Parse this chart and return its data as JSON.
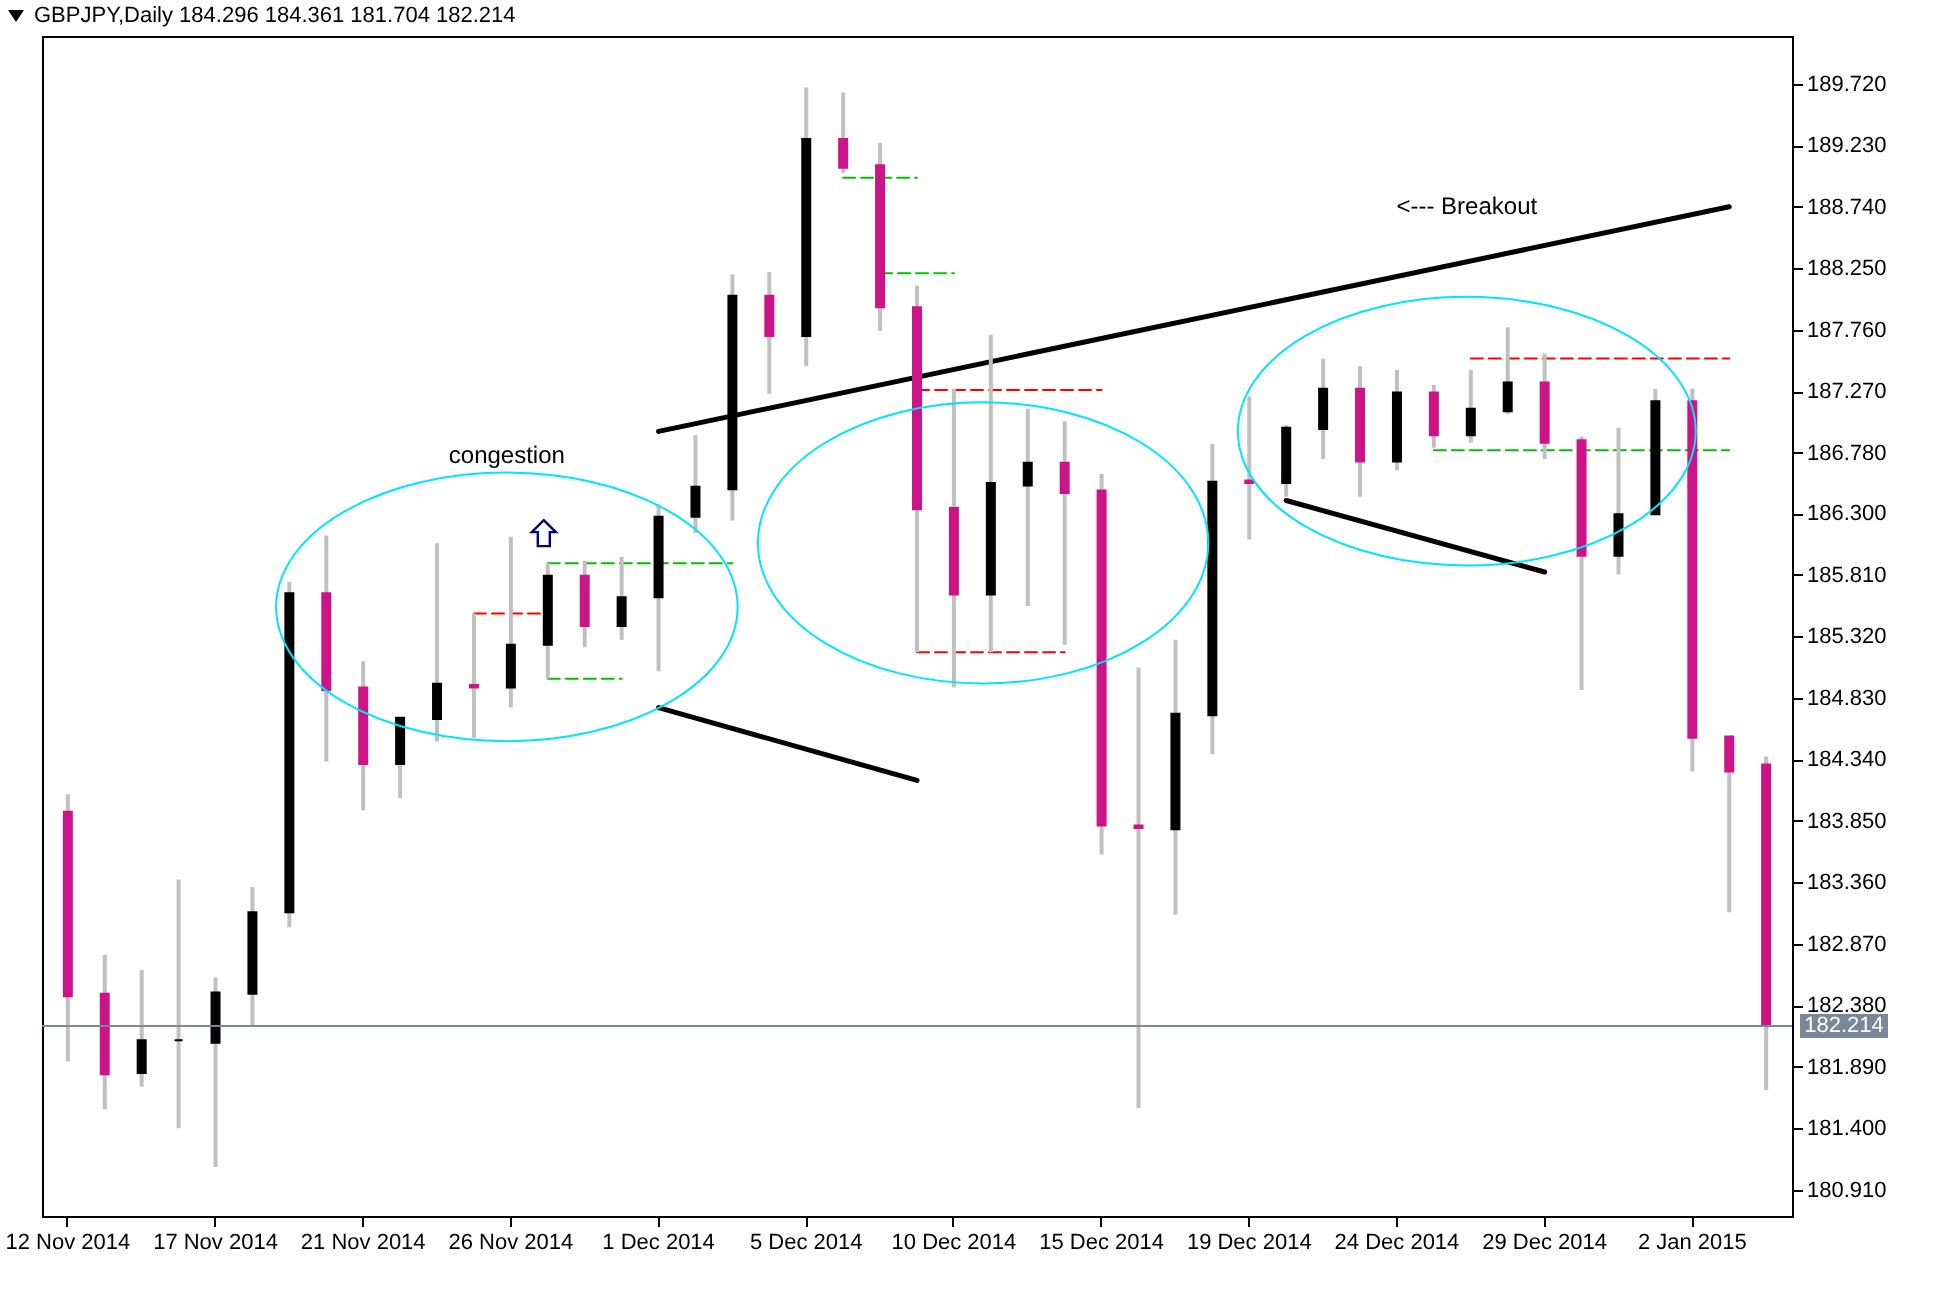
{
  "chart_data": {
    "type": "candlestick",
    "title": "GBPJPY,Daily  184.296 184.361 181.704 182.214",
    "categories": [
      "12 Nov 2014",
      null,
      null,
      null,
      "17 Nov 2014",
      null,
      null,
      null,
      "21 Nov 2014",
      null,
      null,
      null,
      "26 Nov 2014",
      null,
      null,
      null,
      "1 Dec 2014",
      null,
      null,
      null,
      "5 Dec 2014",
      null,
      null,
      null,
      "10 Dec 2014",
      null,
      null,
      null,
      "15 Dec 2014",
      null,
      null,
      null,
      "19 Dec 2014",
      null,
      null,
      null,
      "24 Dec 2014",
      null,
      null,
      null,
      "29 Dec 2014",
      null,
      null,
      null,
      "2 Jan 2015",
      null,
      null
    ],
    "ohlc": [
      [
        183.92,
        184.06,
        181.93,
        182.45
      ],
      [
        182.47,
        182.78,
        181.55,
        181.83
      ],
      [
        181.84,
        182.66,
        181.73,
        182.1
      ],
      [
        182.1,
        183.38,
        181.4,
        182.1
      ],
      [
        182.08,
        182.6,
        181.09,
        182.48
      ],
      [
        182.47,
        183.32,
        182.21,
        183.12
      ],
      [
        183.12,
        185.75,
        183.0,
        185.66
      ],
      [
        185.66,
        186.12,
        184.32,
        184.89
      ],
      [
        184.91,
        185.12,
        183.93,
        184.3
      ],
      [
        184.3,
        184.67,
        184.03,
        184.67
      ],
      [
        184.66,
        186.06,
        184.48,
        184.94
      ],
      [
        184.93,
        185.5,
        184.51,
        184.91
      ],
      [
        184.91,
        186.11,
        184.75,
        185.25
      ],
      [
        185.25,
        185.9,
        184.98,
        185.8
      ],
      [
        185.8,
        185.92,
        185.23,
        185.4
      ],
      [
        185.4,
        185.95,
        185.29,
        185.63
      ],
      [
        185.63,
        186.37,
        185.04,
        186.27
      ],
      [
        186.27,
        186.92,
        186.14,
        186.51
      ],
      [
        186.49,
        188.2,
        186.24,
        188.03
      ],
      [
        188.03,
        188.22,
        187.25,
        187.71
      ],
      [
        187.71,
        189.69,
        187.47,
        189.28
      ],
      [
        189.28,
        189.65,
        189.01,
        189.05
      ],
      [
        189.07,
        189.25,
        187.75,
        187.94
      ],
      [
        187.94,
        188.11,
        185.19,
        186.33
      ],
      [
        186.34,
        187.29,
        184.91,
        185.65
      ],
      [
        185.65,
        187.72,
        185.19,
        186.54
      ],
      [
        186.52,
        187.13,
        185.56,
        186.7
      ],
      [
        186.7,
        187.03,
        185.25,
        186.46
      ],
      [
        186.48,
        186.61,
        183.58,
        183.81
      ],
      [
        183.81,
        185.07,
        181.56,
        183.79
      ],
      [
        183.78,
        185.29,
        183.1,
        184.7
      ],
      [
        184.69,
        186.85,
        184.38,
        186.55
      ],
      [
        186.56,
        187.23,
        186.09,
        186.54
      ],
      [
        186.54,
        187.0,
        186.43,
        186.98
      ],
      [
        186.97,
        187.53,
        186.73,
        187.29
      ],
      [
        187.29,
        187.47,
        186.43,
        186.71
      ],
      [
        186.71,
        187.44,
        186.64,
        187.26
      ],
      [
        187.26,
        187.32,
        186.82,
        186.92
      ],
      [
        186.92,
        187.44,
        186.86,
        187.13
      ],
      [
        187.11,
        187.78,
        187.09,
        187.34
      ],
      [
        187.34,
        187.57,
        186.73,
        186.86
      ],
      [
        186.88,
        186.91,
        184.89,
        185.96
      ],
      [
        185.96,
        186.98,
        185.81,
        186.29
      ],
      [
        186.29,
        187.29,
        186.29,
        187.19
      ],
      [
        187.19,
        187.29,
        184.24,
        184.51
      ],
      [
        184.52,
        184.52,
        183.12,
        184.24
      ],
      [
        184.296,
        184.361,
        181.704,
        182.214
      ]
    ],
    "colors": [
      "#cc1488",
      "#cc1488",
      "#000000",
      "#000000",
      "#000000",
      "#000000",
      "#000000",
      "#cc1488",
      "#cc1488",
      "#000000",
      "#000000",
      "#cc1488",
      "#000000",
      "#000000",
      "#cc1488",
      "#000000",
      "#000000",
      "#000000",
      "#000000",
      "#cc1488",
      "#000000",
      "#cc1488",
      "#cc1488",
      "#cc1488",
      "#cc1488",
      "#000000",
      "#000000",
      "#cc1488",
      "#cc1488",
      "#cc1488",
      "#000000",
      "#000000",
      "#cc1488",
      "#000000",
      "#000000",
      "#cc1488",
      "#000000",
      "#cc1488",
      "#000000",
      "#000000",
      "#cc1488",
      "#cc1488",
      "#000000",
      "#000000",
      "#cc1488",
      "#cc1488",
      "#cc1488"
    ],
    "series": [
      {
        "type": "line",
        "color": "#000000",
        "line_style": "solid",
        "values": [
          null,
          null,
          null,
          null,
          null,
          null,
          null,
          null,
          null,
          null,
          null,
          null,
          null,
          null,
          null,
          null,
          186.95,
          null,
          null,
          null,
          null,
          null,
          null,
          null,
          null,
          null,
          null,
          null,
          null,
          null,
          null,
          null,
          null,
          null,
          null,
          null,
          null,
          null,
          null,
          null,
          null,
          null,
          null,
          null,
          null,
          188.74,
          null
        ]
      },
      {
        "type": "line",
        "color": "#000000",
        "line_style": "solid",
        "values": [
          null,
          null,
          null,
          null,
          null,
          null,
          null,
          null,
          null,
          null,
          null,
          null,
          null,
          null,
          null,
          null,
          184.75,
          null,
          null,
          null,
          null,
          null,
          null,
          184.17,
          null,
          null,
          null,
          null,
          null,
          null,
          null,
          null,
          null,
          null,
          null,
          null,
          null,
          null,
          null,
          null,
          null,
          null,
          null,
          null,
          null,
          null,
          null
        ]
      },
      {
        "type": "line",
        "color": "#000000",
        "line_style": "solid",
        "values": [
          null,
          null,
          null,
          null,
          null,
          null,
          null,
          null,
          null,
          null,
          null,
          null,
          null,
          null,
          null,
          null,
          null,
          null,
          null,
          null,
          null,
          null,
          null,
          null,
          null,
          null,
          null,
          null,
          null,
          null,
          null,
          null,
          null,
          186.4,
          null,
          null,
          null,
          null,
          null,
          null,
          185.83,
          null,
          null,
          null,
          null,
          null,
          null
        ]
      },
      {
        "type": "line",
        "color": "#ff0000",
        "line_style": "dashed",
        "values": [
          null,
          null,
          null,
          null,
          null,
          null,
          null,
          null,
          null,
          null,
          null,
          185.5,
          null,
          185.5,
          null,
          null,
          null,
          null,
          null,
          null,
          null,
          null,
          null,
          null,
          null,
          null,
          null,
          null,
          null,
          null,
          null,
          null,
          null,
          null,
          null,
          null,
          null,
          null,
          null,
          null,
          null,
          null,
          null,
          null,
          null,
          null,
          null
        ]
      },
      {
        "type": "line",
        "color": "#00c000",
        "line_style": "dashed",
        "values": [
          null,
          null,
          null,
          null,
          null,
          null,
          null,
          null,
          null,
          null,
          null,
          null,
          null,
          185.9,
          null,
          null,
          null,
          null,
          185.9,
          null,
          null,
          null,
          null,
          null,
          null,
          null,
          null,
          null,
          null,
          null,
          null,
          null,
          null,
          null,
          null,
          null,
          null,
          null,
          null,
          null,
          null,
          null,
          null,
          null,
          null,
          null,
          null
        ]
      },
      {
        "type": "line",
        "color": "#00c000",
        "line_style": "dashed",
        "values": [
          null,
          null,
          null,
          null,
          null,
          null,
          null,
          null,
          null,
          null,
          null,
          null,
          null,
          184.98,
          null,
          184.98,
          null,
          null,
          null,
          null,
          null,
          null,
          null,
          null,
          null,
          null,
          null,
          null,
          null,
          null,
          null,
          null,
          null,
          null,
          null,
          null,
          null,
          null,
          null,
          null,
          null,
          null,
          null,
          null,
          null,
          null,
          null
        ]
      },
      {
        "type": "line",
        "color": "#00c000",
        "line_style": "dashed",
        "values": [
          null,
          null,
          null,
          null,
          null,
          null,
          null,
          null,
          null,
          null,
          null,
          null,
          null,
          null,
          null,
          null,
          null,
          null,
          null,
          null,
          null,
          188.97,
          null,
          188.97,
          null,
          null,
          null,
          null,
          null,
          null,
          null,
          null,
          null,
          null,
          null,
          null,
          null,
          null,
          null,
          null,
          null,
          null,
          null,
          null,
          null,
          null,
          null
        ]
      },
      {
        "type": "line",
        "color": "#00c000",
        "line_style": "dashed",
        "values": [
          null,
          null,
          null,
          null,
          null,
          null,
          null,
          null,
          null,
          null,
          null,
          null,
          null,
          null,
          null,
          null,
          null,
          null,
          null,
          null,
          null,
          null,
          188.21,
          null,
          188.21,
          null,
          null,
          null,
          null,
          null,
          null,
          null,
          null,
          null,
          null,
          null,
          null,
          null,
          null,
          null,
          null,
          null,
          null,
          null,
          null,
          null,
          null
        ]
      },
      {
        "type": "line",
        "color": "#ff0000",
        "line_style": "dashed",
        "values": [
          null,
          null,
          null,
          null,
          null,
          null,
          null,
          null,
          null,
          null,
          null,
          null,
          null,
          null,
          null,
          null,
          null,
          null,
          null,
          null,
          null,
          null,
          null,
          187.28,
          null,
          null,
          null,
          null,
          187.28,
          null,
          null,
          null,
          null,
          null,
          null,
          null,
          null,
          null,
          null,
          null,
          null,
          null,
          null,
          null,
          null,
          null,
          null
        ]
      },
      {
        "type": "line",
        "color": "#ff0000",
        "line_style": "dashed",
        "values": [
          null,
          null,
          null,
          null,
          null,
          null,
          null,
          null,
          null,
          null,
          null,
          null,
          null,
          null,
          null,
          null,
          null,
          null,
          null,
          null,
          null,
          null,
          null,
          185.19,
          null,
          null,
          null,
          185.19,
          null,
          null,
          null,
          null,
          null,
          null,
          null,
          null,
          null,
          null,
          null,
          null,
          null,
          null,
          null,
          null,
          null,
          null,
          null
        ]
      },
      {
        "type": "line",
        "color": "#ff0000",
        "line_style": "dashed",
        "values": [
          null,
          null,
          null,
          null,
          null,
          null,
          null,
          null,
          null,
          null,
          null,
          null,
          null,
          null,
          null,
          null,
          null,
          null,
          null,
          null,
          null,
          null,
          null,
          null,
          null,
          null,
          null,
          null,
          null,
          null,
          null,
          null,
          null,
          null,
          null,
          null,
          null,
          null,
          187.53,
          null,
          null,
          null,
          null,
          null,
          null,
          187.53,
          null
        ]
      },
      {
        "type": "line",
        "color": "#00c000",
        "line_style": "dashed",
        "values": [
          null,
          null,
          null,
          null,
          null,
          null,
          null,
          null,
          null,
          null,
          null,
          null,
          null,
          null,
          null,
          null,
          null,
          null,
          null,
          null,
          null,
          null,
          null,
          null,
          null,
          null,
          null,
          null,
          null,
          null,
          null,
          null,
          null,
          null,
          null,
          null,
          null,
          186.8,
          null,
          null,
          null,
          null,
          null,
          null,
          null,
          186.8,
          null
        ]
      }
    ],
    "ylim": [
      180.7,
      190.1
    ],
    "yticks": [
      {
        "value": 180.91,
        "label": "180.910"
      },
      {
        "value": 181.4,
        "label": "181.400"
      },
      {
        "value": 181.89,
        "label": "181.890"
      },
      {
        "value": 182.38,
        "label": "182.380"
      },
      {
        "value": 182.87,
        "label": "182.870"
      },
      {
        "value": 183.36,
        "label": "183.360"
      },
      {
        "value": 183.85,
        "label": "183.850"
      },
      {
        "value": 184.34,
        "label": "184.340"
      },
      {
        "value": 184.83,
        "label": "184.830"
      },
      {
        "value": 185.32,
        "label": "185.320"
      },
      {
        "value": 185.81,
        "label": "185.810"
      },
      {
        "value": 186.3,
        "label": "186.300"
      },
      {
        "value": 186.78,
        "label": "186.780"
      },
      {
        "value": 187.27,
        "label": "187.270"
      },
      {
        "value": 187.76,
        "label": "187.760"
      },
      {
        "value": 188.25,
        "label": "188.250"
      },
      {
        "value": 188.74,
        "label": "188.740"
      },
      {
        "value": 189.23,
        "label": "189.230"
      },
      {
        "value": 189.72,
        "label": "189.720"
      }
    ],
    "ref_lines": [
      {
        "axis": "y",
        "value": 182.214,
        "label": "182.214",
        "color": "#778899"
      }
    ],
    "annotations": [
      "congestion",
      "<--- Breakout"
    ]
  }
}
